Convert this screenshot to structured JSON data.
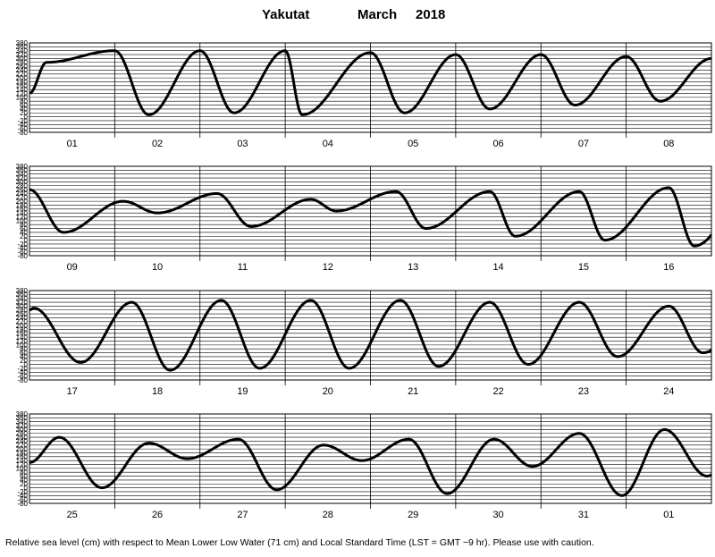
{
  "title": {
    "station": "Yakutat",
    "month": "March",
    "year": "2018"
  },
  "caption": "Relative sea level (cm) with respect to Mean Lower Low Water (71 cm) and Local Standard Time (LST = GMT −9 hr). Please use with caution.",
  "chart_data": [
    {
      "type": "line",
      "panel": 1,
      "categories": [
        "01",
        "02",
        "03",
        "04",
        "05",
        "06",
        "07",
        "08"
      ],
      "ylim": [
        -80,
        380
      ],
      "yticks": [
        -80,
        -60,
        -40,
        -20,
        0,
        20,
        40,
        60,
        80,
        100,
        120,
        140,
        160,
        180,
        200,
        220,
        240,
        260,
        280,
        300,
        320,
        340,
        360,
        380
      ],
      "grid": true,
      "series": [
        {
          "extrema": [
            [
              0.2,
              280
            ],
            [
              1.0,
              340
            ],
            [
              1.4,
              10
            ],
            [
              2.0,
              340
            ],
            [
              2.4,
              20
            ],
            [
              3.0,
              340
            ],
            [
              3.2,
              10
            ],
            [
              4.0,
              330
            ],
            [
              4.4,
              20
            ],
            [
              5.0,
              320
            ],
            [
              5.4,
              40
            ],
            [
              6.0,
              320
            ],
            [
              6.4,
              60
            ],
            [
              7.0,
              310
            ],
            [
              7.4,
              80
            ],
            [
              8.0,
              300
            ],
            [
              8.4,
              70
            ],
            [
              9.0,
              280
            ]
          ],
          "t0": 0.0,
          "t1": 8.0,
          "y0": 120,
          "y1": 180
        }
      ]
    },
    {
      "type": "line",
      "panel": 2,
      "categories": [
        "09",
        "10",
        "11",
        "12",
        "13",
        "14",
        "15",
        "16"
      ],
      "ylim": [
        -80,
        380
      ],
      "yticks": [
        -80,
        -60,
        -40,
        -20,
        0,
        20,
        40,
        60,
        80,
        100,
        120,
        140,
        160,
        180,
        200,
        220,
        240,
        260,
        280,
        300,
        320,
        340,
        360,
        380
      ],
      "grid": true,
      "series": [
        {
          "extrema": [
            [
              0.0,
              260
            ],
            [
              0.4,
              40
            ],
            [
              1.1,
              200
            ],
            [
              1.5,
              140
            ],
            [
              2.2,
              240
            ],
            [
              2.6,
              70
            ],
            [
              3.3,
              210
            ],
            [
              3.6,
              150
            ],
            [
              4.3,
              250
            ],
            [
              4.65,
              60
            ],
            [
              5.4,
              250
            ],
            [
              5.7,
              20
            ],
            [
              6.45,
              250
            ],
            [
              6.75,
              0
            ],
            [
              7.5,
              270
            ],
            [
              7.8,
              -30
            ],
            [
              8.5,
              270
            ],
            [
              8.8,
              -40
            ]
          ],
          "t0": 0.0,
          "t1": 8.0,
          "y0": 120,
          "y1": 270
        }
      ]
    },
    {
      "type": "line",
      "panel": 3,
      "categories": [
        "17",
        "18",
        "19",
        "20",
        "21",
        "22",
        "23",
        "24"
      ],
      "ylim": [
        -80,
        380
      ],
      "yticks": [
        -80,
        -60,
        -40,
        -20,
        0,
        20,
        40,
        60,
        80,
        100,
        120,
        140,
        160,
        180,
        200,
        220,
        240,
        260,
        280,
        300,
        320,
        340,
        360,
        380
      ],
      "grid": true,
      "series": [
        {
          "extrema": [
            [
              0.05,
              290
            ],
            [
              0.6,
              10
            ],
            [
              1.2,
              320
            ],
            [
              1.65,
              -30
            ],
            [
              2.25,
              330
            ],
            [
              2.7,
              -20
            ],
            [
              3.3,
              330
            ],
            [
              3.75,
              -20
            ],
            [
              4.35,
              330
            ],
            [
              4.8,
              -10
            ],
            [
              5.4,
              320
            ],
            [
              5.85,
              0
            ],
            [
              6.45,
              320
            ],
            [
              6.9,
              40
            ],
            [
              7.5,
              300
            ],
            [
              7.9,
              60
            ],
            [
              8.55,
              280
            ],
            [
              8.95,
              100
            ]
          ],
          "t0": 0.0,
          "t1": 8.0,
          "y0": 280,
          "y1": 120
        }
      ]
    },
    {
      "type": "line",
      "panel": 4,
      "categories": [
        "25",
        "26",
        "27",
        "28",
        "29",
        "30",
        "31",
        "01"
      ],
      "ylim": [
        -80,
        380
      ],
      "yticks": [
        -80,
        -60,
        -40,
        -20,
        0,
        20,
        40,
        60,
        80,
        100,
        120,
        140,
        160,
        180,
        200,
        220,
        240,
        260,
        280,
        300,
        320,
        340,
        360,
        380
      ],
      "grid": true,
      "series": [
        {
          "extrema": [
            [
              0.0,
              130
            ],
            [
              0.35,
              260
            ],
            [
              0.85,
              0
            ],
            [
              1.4,
              230
            ],
            [
              1.85,
              150
            ],
            [
              2.45,
              250
            ],
            [
              2.9,
              -10
            ],
            [
              3.45,
              220
            ],
            [
              3.9,
              140
            ],
            [
              4.45,
              250
            ],
            [
              4.9,
              -30
            ],
            [
              5.45,
              250
            ],
            [
              5.9,
              110
            ],
            [
              6.45,
              280
            ],
            [
              6.95,
              -40
            ],
            [
              7.45,
              300
            ],
            [
              7.95,
              60
            ],
            [
              8.45,
              320
            ]
          ],
          "t0": 0.0,
          "t1": 8.0,
          "y0": 120,
          "y1": 270
        }
      ]
    }
  ]
}
